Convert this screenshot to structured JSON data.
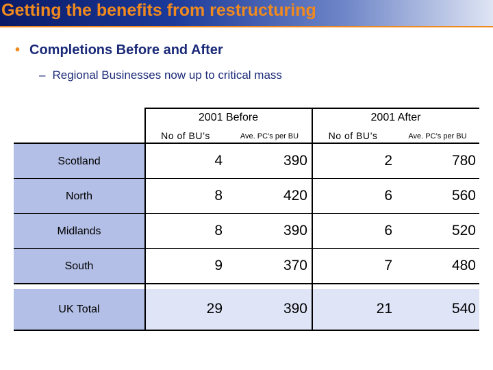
{
  "title": "Getting the benefits from restructuring",
  "bullet_main": "Completions Before and After",
  "bullet_sub": "Regional Businesses now up to critical mass",
  "colors": {
    "title_text": "#f08a1e",
    "body_text": "#1b2a78",
    "label_fill": "#b3bfe6",
    "total_fill": "#dfe5f7"
  },
  "table": {
    "groups": [
      "2001 Before",
      "2001 After"
    ],
    "columns": [
      "No of BU’s",
      "Ave. PC’s per BU",
      "No of BU’s",
      "Ave. PC’s per BU"
    ],
    "rows": [
      {
        "region": "Scotland",
        "values": [
          "4",
          "390",
          "2",
          "780"
        ]
      },
      {
        "region": "North",
        "values": [
          "8",
          "420",
          "6",
          "560"
        ]
      },
      {
        "region": "Midlands",
        "values": [
          "8",
          "390",
          "6",
          "520"
        ]
      },
      {
        "region": "South",
        "values": [
          "9",
          "370",
          "7",
          "480"
        ]
      },
      {
        "region": "UK Total",
        "values": [
          "29",
          "390",
          "21",
          "540"
        ]
      }
    ]
  }
}
